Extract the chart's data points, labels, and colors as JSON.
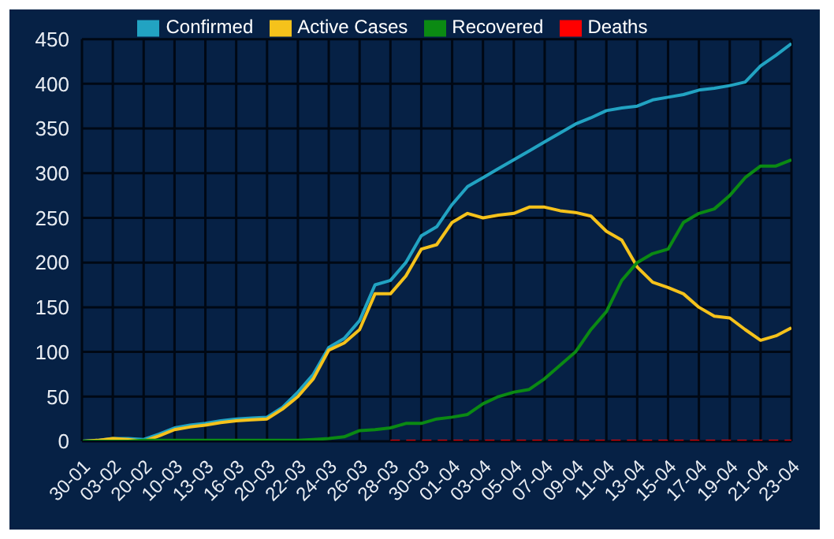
{
  "chart_data": {
    "type": "line",
    "categories": [
      "30-01",
      null,
      "03-02",
      null,
      "20-02",
      null,
      "10-03",
      null,
      "13-03",
      null,
      "16-03",
      null,
      "20-03",
      null,
      "22-03",
      null,
      "24-03",
      null,
      "26-03",
      null,
      "28-03",
      null,
      "30-03",
      null,
      "01-04",
      null,
      "03-04",
      null,
      "05-04",
      null,
      "07-04",
      null,
      "09-04",
      null,
      "11-04",
      null,
      "13-04",
      null,
      "15-04",
      null,
      "17-04",
      null,
      "19-04",
      null,
      "21-04",
      null,
      "23-04"
    ],
    "series": [
      {
        "name": "Confirmed",
        "color": "#22a3c2",
        "values": [
          0,
          1,
          3,
          3,
          2,
          8,
          15,
          18,
          20,
          23,
          25,
          26,
          27,
          38,
          55,
          75,
          105,
          115,
          135,
          175,
          180,
          200,
          230,
          240,
          265,
          285,
          295,
          305,
          315,
          325,
          335,
          345,
          355,
          362,
          370,
          373,
          375,
          382,
          385,
          388,
          393,
          395,
          398,
          402,
          420,
          432,
          445
        ]
      },
      {
        "name": "Active Cases",
        "color": "#f5c21b",
        "values": [
          0,
          1,
          3,
          2,
          0,
          6,
          13,
          16,
          18,
          21,
          23,
          24,
          25,
          36,
          50,
          70,
          102,
          110,
          125,
          165,
          165,
          185,
          215,
          220,
          245,
          255,
          250,
          253,
          255,
          262,
          262,
          258,
          256,
          252,
          235,
          225,
          195,
          178,
          172,
          165,
          150,
          140,
          138,
          125,
          113,
          118,
          127
        ]
      },
      {
        "name": "Recovered",
        "color": "#0b8a13",
        "values": [
          0,
          0,
          0,
          0,
          1,
          1,
          1,
          1,
          1,
          1,
          1,
          1,
          1,
          1,
          1,
          2,
          3,
          5,
          12,
          13,
          15,
          20,
          20,
          25,
          27,
          30,
          42,
          50,
          55,
          58,
          70,
          85,
          100,
          125,
          145,
          180,
          200,
          210,
          215,
          245,
          255,
          260,
          275,
          295,
          308,
          308,
          315
        ]
      },
      {
        "name": "Deaths",
        "color": "#ff0000",
        "line_style": "dashed",
        "values": [
          null,
          null,
          null,
          null,
          null,
          null,
          null,
          null,
          null,
          null,
          null,
          null,
          null,
          null,
          null,
          null,
          null,
          null,
          null,
          null,
          0,
          0,
          0,
          0,
          0,
          0,
          0,
          0,
          0,
          0,
          0,
          0,
          0,
          0,
          0,
          0,
          0,
          0,
          0,
          0,
          0,
          0,
          0,
          0,
          0,
          0,
          0
        ]
      }
    ],
    "ylim": [
      0,
      450
    ],
    "yticks": [
      0,
      50,
      100,
      150,
      200,
      250,
      300,
      350,
      400,
      450
    ],
    "grid": true,
    "legend": "top",
    "marker": "none",
    "line_style": "solid"
  }
}
